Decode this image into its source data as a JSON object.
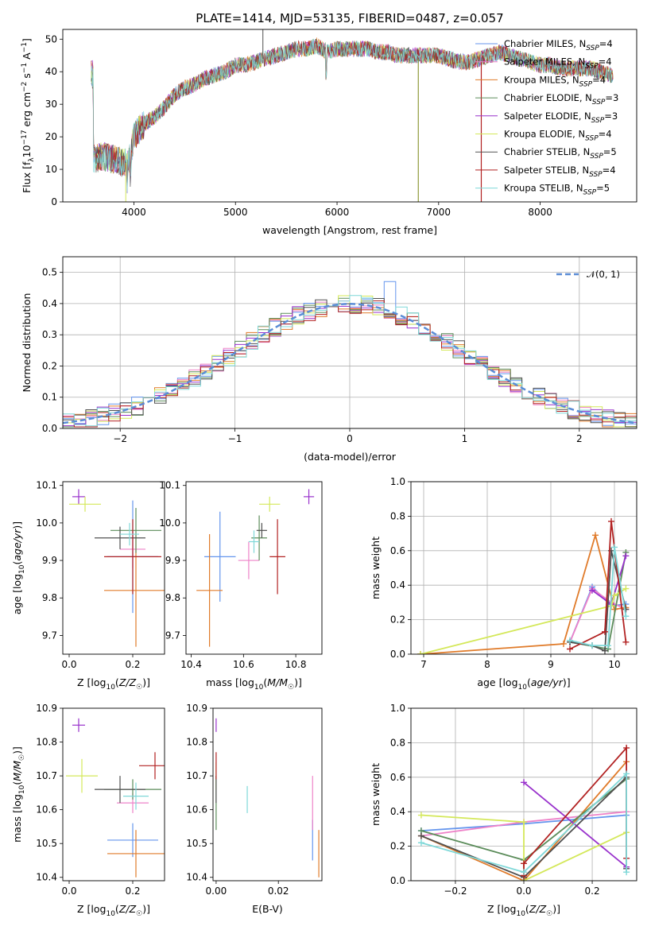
{
  "figure_title": "PLATE=1414, MJD=53135, FIBERID=0487, z=0.057",
  "series": [
    {
      "name": "Chabrier MILES, N_SSP=4",
      "color": "#6495ED"
    },
    {
      "name": "Salpeter MILES, N_SSP=4",
      "color": "#EE82C8"
    },
    {
      "name": "Kroupa MILES, N_SSP=4",
      "color": "#E07B2A"
    },
    {
      "name": "Chabrier ELODIE, N_SSP=3",
      "color": "#5B8C5A"
    },
    {
      "name": "Salpeter ELODIE, N_SSP=3",
      "color": "#9932CC"
    },
    {
      "name": "Kroupa ELODIE, N_SSP=4",
      "color": "#D4E85A"
    },
    {
      "name": "Chabrier STELIB, N_SSP=5",
      "color": "#505050"
    },
    {
      "name": "Salpeter STELIB, N_SSP=4",
      "color": "#B22222"
    },
    {
      "name": "Kroupa STELIB, N_SSP=5",
      "color": "#7FD8D8"
    }
  ],
  "chart_data": [
    {
      "id": "spectrum",
      "type": "line",
      "xlabel": "wavelength [Angstrom, rest frame]",
      "ylabel": "Flux [f_λ 10^-17 erg cm^-2 s^-1 A^-1]",
      "xlim": [
        3300,
        8950
      ],
      "ylim": [
        0,
        53
      ],
      "xticks": [
        4000,
        5000,
        6000,
        7000,
        8000
      ],
      "yticks": [
        0,
        10,
        20,
        30,
        40,
        50
      ],
      "grid": false,
      "legend": "upper right",
      "continuum": {
        "x": [
          3600,
          3700,
          3800,
          3900,
          3950,
          4000,
          4100,
          4200,
          4300,
          4400,
          4500,
          4600,
          4700,
          4800,
          4900,
          5000,
          5100,
          5200,
          5300,
          5400,
          5500,
          5600,
          5700,
          5800,
          5900,
          6000,
          6100,
          6200,
          6300,
          6400,
          6500,
          6600,
          6700,
          6800,
          6900,
          7000,
          7100,
          7200,
          7300,
          7400,
          7500,
          7600,
          7700,
          7800,
          7900,
          8000,
          8100,
          8200,
          8300,
          8400,
          8500,
          8600,
          8700
        ],
        "y": [
          13,
          14,
          13,
          12,
          12,
          20,
          24,
          26,
          29,
          33,
          35,
          36,
          38,
          39,
          40,
          42,
          42,
          43,
          44,
          45,
          46,
          47,
          47,
          48,
          46,
          47,
          47,
          47,
          47,
          46,
          46,
          45,
          45,
          45,
          45,
          45,
          44,
          43,
          43,
          44,
          45,
          46,
          45,
          44,
          43,
          42,
          42,
          41,
          41,
          41,
          41,
          40,
          39
        ]
      }
    },
    {
      "id": "residual-hist",
      "type": "area",
      "xlabel": "(data-model)/error",
      "ylabel": "Normed distribution",
      "xlim": [
        -2.5,
        2.5
      ],
      "ylim": [
        0,
        0.55
      ],
      "xticks": [
        -2,
        -1,
        0,
        1,
        2
      ],
      "yticks": [
        0,
        0.1,
        0.2,
        0.3,
        0.4,
        0.5
      ],
      "grid": true,
      "legend": "upper right",
      "reference": {
        "name": "𝒩(0, 1)",
        "mu": 0,
        "sigma": 1,
        "color": "#5A8CD6"
      },
      "bin_width": 0.1,
      "bin_start": -2.5
    },
    {
      "id": "age-vs-Z",
      "type": "scatter",
      "xlabel": "Z [log10(Z/Z☉)]",
      "ylabel": "age [log10(age/yr)]",
      "xlim": [
        -0.02,
        0.3
      ],
      "ylim": [
        9.65,
        10.11
      ],
      "xticks": [
        0.0,
        0.2
      ],
      "yticks": [
        9.7,
        9.8,
        9.9,
        10.0,
        10.1
      ],
      "grid": false,
      "points": [
        {
          "s": 0,
          "x": 0.2,
          "y": 9.91,
          "xerr": 0.08,
          "yerr": 0.15
        },
        {
          "s": 1,
          "x": 0.2,
          "y": 9.93,
          "xerr": 0.04,
          "yerr": 0.05
        },
        {
          "s": 2,
          "x": 0.21,
          "y": 9.82,
          "xerr": 0.1,
          "yerr": 0.15
        },
        {
          "s": 3,
          "x": 0.21,
          "y": 9.98,
          "xerr": 0.08,
          "yerr": 0.06
        },
        {
          "s": 4,
          "x": 0.03,
          "y": 10.07,
          "xerr": 0.02,
          "yerr": 0.02
        },
        {
          "s": 5,
          "x": 0.05,
          "y": 10.05,
          "xerr": 0.05,
          "yerr": 0.02
        },
        {
          "s": 6,
          "x": 0.16,
          "y": 9.96,
          "xerr": 0.08,
          "yerr": 0.03
        },
        {
          "s": 7,
          "x": 0.2,
          "y": 9.91,
          "xerr": 0.09,
          "yerr": 0.1
        },
        {
          "s": 8,
          "x": 0.19,
          "y": 9.97,
          "xerr": 0.03,
          "yerr": 0.03
        }
      ]
    },
    {
      "id": "age-vs-mass",
      "type": "scatter",
      "xlabel": "mass [log10(M/M☉)]",
      "ylabel": "",
      "xlim": [
        10.38,
        10.9
      ],
      "ylim": [
        9.65,
        10.11
      ],
      "xticks": [
        10.4,
        10.6,
        10.8
      ],
      "yticks": [
        9.7,
        9.8,
        9.9,
        10.0,
        10.1
      ],
      "grid": false,
      "points": [
        {
          "s": 0,
          "x": 10.51,
          "y": 9.91,
          "xerr": 0.06,
          "yerr": 0.12
        },
        {
          "s": 1,
          "x": 10.62,
          "y": 9.9,
          "xerr": 0.04,
          "yerr": 0.05
        },
        {
          "s": 2,
          "x": 10.47,
          "y": 9.82,
          "xerr": 0.05,
          "yerr": 0.15
        },
        {
          "s": 3,
          "x": 10.66,
          "y": 9.96,
          "xerr": 0.03,
          "yerr": 0.06
        },
        {
          "s": 4,
          "x": 10.85,
          "y": 10.07,
          "xerr": 0.02,
          "yerr": 0.02
        },
        {
          "s": 5,
          "x": 10.7,
          "y": 10.05,
          "xerr": 0.04,
          "yerr": 0.02
        },
        {
          "s": 6,
          "x": 10.67,
          "y": 9.98,
          "xerr": 0.02,
          "yerr": 0.02
        },
        {
          "s": 7,
          "x": 10.73,
          "y": 9.91,
          "xerr": 0.03,
          "yerr": 0.1
        },
        {
          "s": 8,
          "x": 10.64,
          "y": 9.95,
          "xerr": 0.02,
          "yerr": 0.03
        }
      ]
    },
    {
      "id": "weight-vs-age",
      "type": "line",
      "xlabel": "age [log10(age/yr)]",
      "ylabel": "mass weight",
      "xlim": [
        6.8,
        10.35
      ],
      "ylim": [
        0,
        1.0
      ],
      "xticks": [
        7,
        8,
        9,
        10
      ],
      "yticks": [
        0.0,
        0.2,
        0.4,
        0.6,
        0.8,
        1.0
      ],
      "grid": true,
      "series": [
        {
          "s": 0,
          "x": [
            9.3,
            9.65,
            9.95,
            10.18
          ],
          "y": [
            0.07,
            0.39,
            0.28,
            0.29
          ]
        },
        {
          "s": 1,
          "x": [
            9.3,
            9.65,
            9.95,
            10.18
          ],
          "y": [
            0.07,
            0.38,
            0.3,
            0.26
          ]
        },
        {
          "s": 2,
          "x": [
            6.95,
            9.2,
            9.7,
            10.0,
            10.18
          ],
          "y": [
            0.0,
            0.06,
            0.69,
            0.26,
            0.27
          ]
        },
        {
          "s": 3,
          "x": [
            9.3,
            9.9,
            10.18
          ],
          "y": [
            0.07,
            0.03,
            0.59
          ]
        },
        {
          "s": 4,
          "x": [
            9.65,
            9.95,
            10.18
          ],
          "y": [
            0.37,
            0.29,
            0.57
          ]
        },
        {
          "s": 5,
          "x": [
            6.95,
            9.95,
            10.0,
            10.18
          ],
          "y": [
            0.0,
            0.28,
            0.34,
            0.38
          ]
        },
        {
          "s": 6,
          "x": [
            9.3,
            9.65,
            9.85,
            9.95,
            10.18
          ],
          "y": [
            0.07,
            0.05,
            0.02,
            0.6,
            0.26
          ]
        },
        {
          "s": 7,
          "x": [
            9.3,
            9.85,
            9.95,
            10.18
          ],
          "y": [
            0.03,
            0.13,
            0.77,
            0.07
          ]
        },
        {
          "s": 8,
          "x": [
            9.3,
            9.65,
            9.9,
            10.0,
            10.18
          ],
          "y": [
            0.08,
            0.05,
            0.05,
            0.62,
            0.22
          ]
        }
      ]
    },
    {
      "id": "mass-vs-Z",
      "type": "scatter",
      "xlabel": "Z [log10(Z/Z☉)]",
      "ylabel": "mass [log10(M/M☉)]",
      "xlim": [
        -0.02,
        0.3
      ],
      "ylim": [
        10.39,
        10.9
      ],
      "xticks": [
        0.0,
        0.2
      ],
      "yticks": [
        10.4,
        10.5,
        10.6,
        10.7,
        10.8,
        10.9
      ],
      "grid": false,
      "points": [
        {
          "s": 0,
          "x": 0.2,
          "y": 10.51,
          "xerr": 0.08,
          "yerr": 0.05
        },
        {
          "s": 1,
          "x": 0.2,
          "y": 10.62,
          "xerr": 0.05,
          "yerr": 0.03
        },
        {
          "s": 2,
          "x": 0.21,
          "y": 10.47,
          "xerr": 0.09,
          "yerr": 0.07
        },
        {
          "s": 3,
          "x": 0.2,
          "y": 10.66,
          "xerr": 0.09,
          "yerr": 0.03
        },
        {
          "s": 4,
          "x": 0.03,
          "y": 10.85,
          "xerr": 0.02,
          "yerr": 0.02
        },
        {
          "s": 5,
          "x": 0.04,
          "y": 10.7,
          "xerr": 0.05,
          "yerr": 0.05
        },
        {
          "s": 6,
          "x": 0.16,
          "y": 10.66,
          "xerr": 0.08,
          "yerr": 0.04
        },
        {
          "s": 7,
          "x": 0.27,
          "y": 10.73,
          "xerr": 0.05,
          "yerr": 0.04
        },
        {
          "s": 8,
          "x": 0.21,
          "y": 10.64,
          "xerr": 0.04,
          "yerr": 0.04
        }
      ]
    },
    {
      "id": "mass-vs-EBV",
      "type": "scatter",
      "xlabel": "E(B-V)",
      "ylabel": "",
      "xlim": [
        -0.001,
        0.034
      ],
      "ylim": [
        10.39,
        10.9
      ],
      "xticks": [
        0.0,
        0.02
      ],
      "yticks": [
        10.4,
        10.5,
        10.6,
        10.7,
        10.8,
        10.9
      ],
      "grid": false,
      "points": [
        {
          "s": 0,
          "x": 0.031,
          "y": 10.51,
          "xerr": 0.0,
          "yerr": 0.06
        },
        {
          "s": 1,
          "x": 0.031,
          "y": 10.62,
          "xerr": 0.0,
          "yerr": 0.08
        },
        {
          "s": 2,
          "x": 0.033,
          "y": 10.47,
          "xerr": 0.0,
          "yerr": 0.07
        },
        {
          "s": 3,
          "x": 0.0,
          "y": 10.62,
          "xerr": 0.0,
          "yerr": 0.08
        },
        {
          "s": 4,
          "x": 0.0,
          "y": 10.85,
          "xerr": 0.0,
          "yerr": 0.02
        },
        {
          "s": 5,
          "x": 0.0,
          "y": 10.7,
          "xerr": 0.0,
          "yerr": 0.04
        },
        {
          "s": 6,
          "x": 0.0,
          "y": 10.66,
          "xerr": 0.0,
          "yerr": 0.04
        },
        {
          "s": 7,
          "x": 0.0,
          "y": 10.73,
          "xerr": 0.0,
          "yerr": 0.04
        },
        {
          "s": 8,
          "x": 0.01,
          "y": 10.63,
          "xerr": 0.0,
          "yerr": 0.04
        }
      ]
    },
    {
      "id": "weight-vs-Z",
      "type": "line",
      "xlabel": "Z [log10(Z/Z☉)]",
      "ylabel": "mass weight",
      "xlim": [
        -0.33,
        0.33
      ],
      "ylim": [
        0,
        1.0
      ],
      "xticks": [
        -0.2,
        0.0,
        0.2
      ],
      "yticks": [
        0.0,
        0.2,
        0.4,
        0.6,
        0.8,
        1.0
      ],
      "grid": true,
      "series": [
        {
          "s": 0,
          "x": [
            -0.3,
            0.0,
            0.3
          ],
          "y": [
            0.29,
            0.33,
            0.38
          ]
        },
        {
          "s": 1,
          "x": [
            -0.3,
            0.0,
            0.3
          ],
          "y": [
            0.26,
            0.34,
            0.4
          ]
        },
        {
          "s": 2,
          "x": [
            -0.3,
            0.0,
            0.3
          ],
          "y": [
            0.26,
            0.0,
            0.69
          ]
        },
        {
          "s": 3,
          "x": [
            -0.3,
            0.0,
            0.3
          ],
          "y": [
            0.29,
            0.12,
            0.59
          ]
        },
        {
          "s": 4,
          "x": [
            0.0,
            0.3
          ],
          "y": [
            0.57,
            0.08
          ]
        },
        {
          "s": 5,
          "x": [
            -0.3,
            0.0,
            0.0,
            0.3
          ],
          "y": [
            0.38,
            0.34,
            0.0,
            0.28
          ]
        },
        {
          "s": 6,
          "x": [
            -0.3,
            0.0,
            0.3,
            0.3
          ],
          "y": [
            0.26,
            0.02,
            0.6,
            0.07
          ]
        },
        {
          "s": 7,
          "x": [
            0.0,
            0.0,
            0.3,
            0.3
          ],
          "y": [
            0.03,
            0.1,
            0.77,
            0.13
          ]
        },
        {
          "s": 8,
          "x": [
            -0.3,
            0.0,
            0.3,
            0.3
          ],
          "y": [
            0.22,
            0.05,
            0.62,
            0.05
          ]
        }
      ]
    }
  ]
}
